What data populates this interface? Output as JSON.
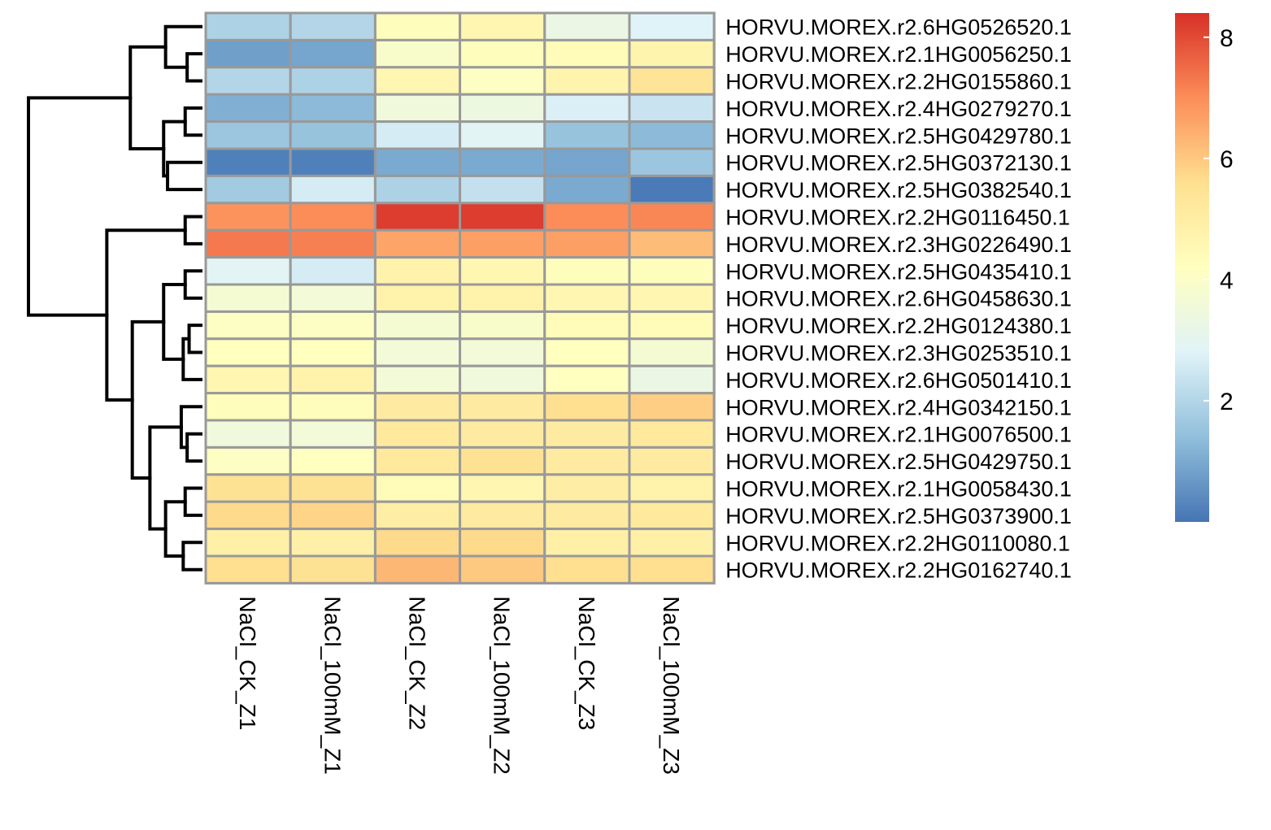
{
  "chart_data": {
    "type": "heatmap",
    "columns": [
      "NaCl_CK_Z1",
      "NaCl_100mM_Z1",
      "NaCl_CK_Z2",
      "NaCl_100mM_Z2",
      "NaCl_CK_Z3",
      "NaCl_100mM_Z3"
    ],
    "rows": [
      "HORVU.MOREX.r2.6HG0526520.1",
      "HORVU.MOREX.r2.1HG0056250.1",
      "HORVU.MOREX.r2.2HG0155860.1",
      "HORVU.MOREX.r2.4HG0279270.1",
      "HORVU.MOREX.r2.5HG0429780.1",
      "HORVU.MOREX.r2.5HG0372130.1",
      "HORVU.MOREX.r2.5HG0382540.1",
      "HORVU.MOREX.r2.2HG0116450.1",
      "HORVU.MOREX.r2.3HG0226490.1",
      "HORVU.MOREX.r2.5HG0435410.1",
      "HORVU.MOREX.r2.6HG0458630.1",
      "HORVU.MOREX.r2.2HG0124380.1",
      "HORVU.MOREX.r2.3HG0253510.1",
      "HORVU.MOREX.r2.6HG0501410.1",
      "HORVU.MOREX.r2.4HG0342150.1",
      "HORVU.MOREX.r2.1HG0076500.1",
      "HORVU.MOREX.r2.5HG0429750.1",
      "HORVU.MOREX.r2.1HG0058430.1",
      "HORVU.MOREX.r2.5HG0373900.1",
      "HORVU.MOREX.r2.2HG0110080.1",
      "HORVU.MOREX.r2.2HG0162740.1"
    ],
    "values": [
      [
        1.9,
        2.0,
        4.3,
        4.6,
        3.3,
        2.8
      ],
      [
        0.8,
        0.9,
        3.9,
        4.3,
        4.4,
        4.7
      ],
      [
        2.0,
        1.9,
        4.6,
        4.1,
        4.7,
        5.4
      ],
      [
        1.1,
        1.3,
        3.5,
        3.4,
        2.7,
        2.4
      ],
      [
        1.6,
        1.5,
        2.6,
        2.9,
        1.5,
        1.3
      ],
      [
        0.2,
        0.2,
        1.0,
        1.0,
        0.9,
        1.6
      ],
      [
        1.7,
        2.6,
        1.9,
        2.3,
        1.0,
        0.1
      ],
      [
        6.9,
        7.0,
        8.2,
        8.2,
        7.0,
        7.1
      ],
      [
        7.3,
        7.2,
        6.6,
        6.7,
        6.7,
        6.2
      ],
      [
        2.9,
        2.6,
        4.8,
        4.6,
        4.3,
        4.3
      ],
      [
        3.7,
        3.6,
        4.8,
        4.8,
        4.6,
        4.6
      ],
      [
        4.1,
        4.1,
        3.7,
        3.9,
        4.4,
        4.4
      ],
      [
        4.2,
        4.2,
        3.6,
        3.6,
        4.2,
        3.7
      ],
      [
        4.6,
        4.8,
        3.6,
        3.5,
        4.2,
        3.3
      ],
      [
        4.3,
        4.3,
        5.1,
        5.1,
        5.6,
        5.9
      ],
      [
        3.5,
        3.6,
        5.2,
        5.1,
        5.1,
        5.2
      ],
      [
        4.1,
        4.2,
        5.2,
        5.5,
        5.1,
        5.1
      ],
      [
        5.5,
        5.5,
        4.4,
        4.6,
        5.0,
        4.8
      ],
      [
        5.7,
        5.8,
        5.0,
        5.1,
        5.1,
        5.2
      ],
      [
        4.9,
        4.9,
        5.7,
        5.7,
        4.9,
        4.9
      ],
      [
        5.6,
        5.5,
        6.3,
        6.0,
        5.6,
        5.6
      ]
    ],
    "color_scale": {
      "min": 0,
      "max": 8.4,
      "colors": [
        "#4575b4",
        "#91bfdb",
        "#e0f3f8",
        "#ffffbf",
        "#fee090",
        "#fc8d59",
        "#d73027"
      ],
      "ticks": [
        2,
        4,
        6,
        8
      ],
      "position": "right"
    },
    "grid_color": "#999999",
    "row_dendrogram": {
      "merges": [
        [
          1,
          2,
          0.7
        ],
        [
          0,
          "n0",
          1.8
        ],
        [
          3,
          4,
          0.8
        ],
        [
          5,
          6,
          1.7
        ],
        [
          "n2",
          "n3",
          1.9
        ],
        [
          "n1",
          "n4",
          3.6
        ],
        [
          7,
          8,
          0.8
        ],
        [
          11,
          12,
          0.6
        ],
        [
          "n7",
          13,
          0.9
        ],
        [
          9,
          10,
          0.8
        ],
        [
          "n9",
          "n8",
          1.9
        ],
        [
          15,
          16,
          0.7
        ],
        [
          14,
          "n11",
          1.0
        ],
        [
          17,
          18,
          0.8
        ],
        [
          19,
          20,
          0.9
        ],
        [
          "n13",
          "n14",
          1.8
        ],
        [
          "n12",
          "n15",
          2.6
        ],
        [
          "n10",
          "n16",
          3.5
        ],
        [
          "n6",
          "n17",
          4.8
        ],
        [
          "n5",
          "n18",
          8.8
        ]
      ]
    }
  }
}
